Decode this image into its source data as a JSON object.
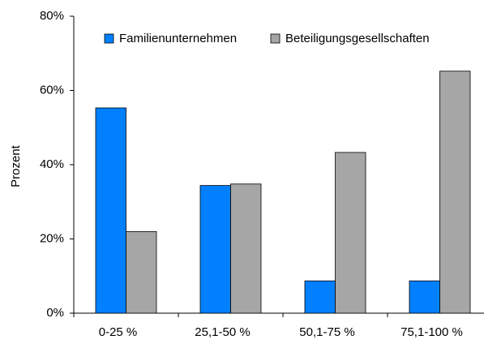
{
  "chart_data": {
    "type": "bar",
    "categories": [
      "0-25 %",
      "25,1-50 %",
      "50,1-75 %",
      "75,1-100 %"
    ],
    "series": [
      {
        "name": "Familienunternehmen",
        "color": "#0080ff",
        "values": [
          55.3,
          34.4,
          8.7,
          8.7
        ]
      },
      {
        "name": "Beteiligungsgesellschaften",
        "color": "#a6a6a6",
        "values": [
          22,
          34.8,
          43.3,
          65.2
        ]
      }
    ],
    "ylabel": "Prozent",
    "ylim": [
      0,
      80
    ],
    "yticks": [
      {
        "value": 0,
        "label": "0%"
      },
      {
        "value": 20,
        "label": "20%"
      },
      {
        "value": 40,
        "label": "40%"
      },
      {
        "value": 60,
        "label": "60%"
      },
      {
        "value": 80,
        "label": "80%"
      }
    ],
    "grid": false,
    "legend": "top"
  }
}
